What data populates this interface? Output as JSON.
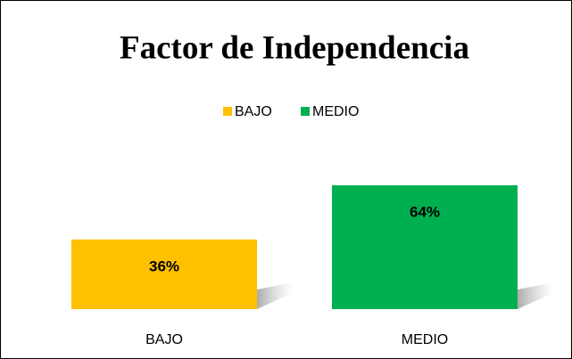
{
  "chart_data": {
    "type": "bar",
    "title": "Factor de Independencia",
    "categories": [
      "BAJO",
      "MEDIO"
    ],
    "series": [
      {
        "name": "BAJO",
        "color": "#ffc000",
        "values": [
          36,
          null
        ],
        "value_labels": [
          "36%",
          null
        ]
      },
      {
        "name": "MEDIO",
        "color": "#00b050",
        "values": [
          null,
          64
        ],
        "value_labels": [
          null,
          "64%"
        ]
      }
    ],
    "legend": "top"
  }
}
